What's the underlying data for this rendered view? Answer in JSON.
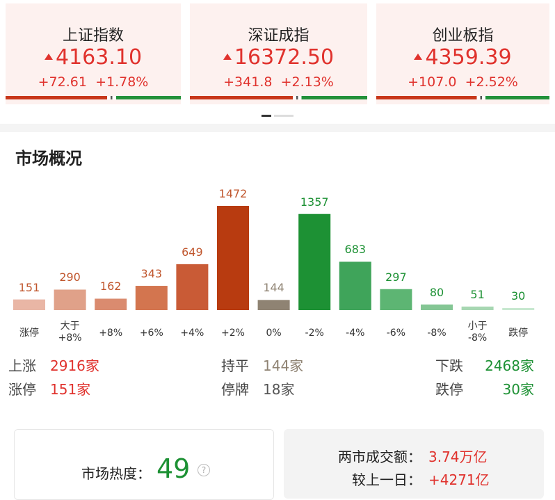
{
  "indices": [
    {
      "name": "上证指数",
      "value": "4163.10",
      "change": "+72.61",
      "percent": "+1.78%"
    },
    {
      "name": "深证成指",
      "value": "16372.50",
      "change": "+341.8",
      "percent": "+2.13%"
    },
    {
      "name": "创业板指",
      "value": "4359.39",
      "change": "+107.0",
      "percent": "+2.52%"
    }
  ],
  "section_title": "市场概况",
  "chart_data": {
    "type": "bar",
    "categories": [
      "涨停",
      "大于\n+8%",
      "+8%",
      "+6%",
      "+4%",
      "+2%",
      "0%",
      "-2%",
      "-4%",
      "-6%",
      "-8%",
      "小于\n-8%",
      "跌停"
    ],
    "values": [
      151,
      290,
      162,
      343,
      649,
      1472,
      144,
      1357,
      683,
      297,
      80,
      51,
      30
    ],
    "colors": [
      "#e9b6a5",
      "#e0a189",
      "#da8b6f",
      "#d3754f",
      "#c95b36",
      "#b83b10",
      "#8f8373",
      "#1d9134",
      "#3fa45a",
      "#5db573",
      "#84c694",
      "#a7d7b2",
      "#c7e8cf"
    ],
    "label_colors": [
      "#c0562d",
      "#c0562d",
      "#c0562d",
      "#c0562d",
      "#c0562d",
      "#c0562d",
      "#8f8373",
      "#1d9134",
      "#1d9134",
      "#1d9134",
      "#1d9134",
      "#1d9134",
      "#1d9134"
    ]
  },
  "stats": [
    [
      {
        "label": "上涨",
        "value": "2916家"
      },
      {
        "label": "持平",
        "value": "144家"
      },
      {
        "label": "下跌",
        "value": "2468家"
      }
    ],
    [
      {
        "label": "涨停",
        "value": "151家"
      },
      {
        "label": "停牌",
        "value": "18家"
      },
      {
        "label": "跌停",
        "value": "30家"
      }
    ]
  ],
  "heat": {
    "label": "市场热度：",
    "value": "49",
    "help": "?"
  },
  "turnover": {
    "label": "两市成交额：",
    "value": "3.74万亿",
    "diff_label": "较上一日：",
    "diff_value": "+4271亿"
  }
}
